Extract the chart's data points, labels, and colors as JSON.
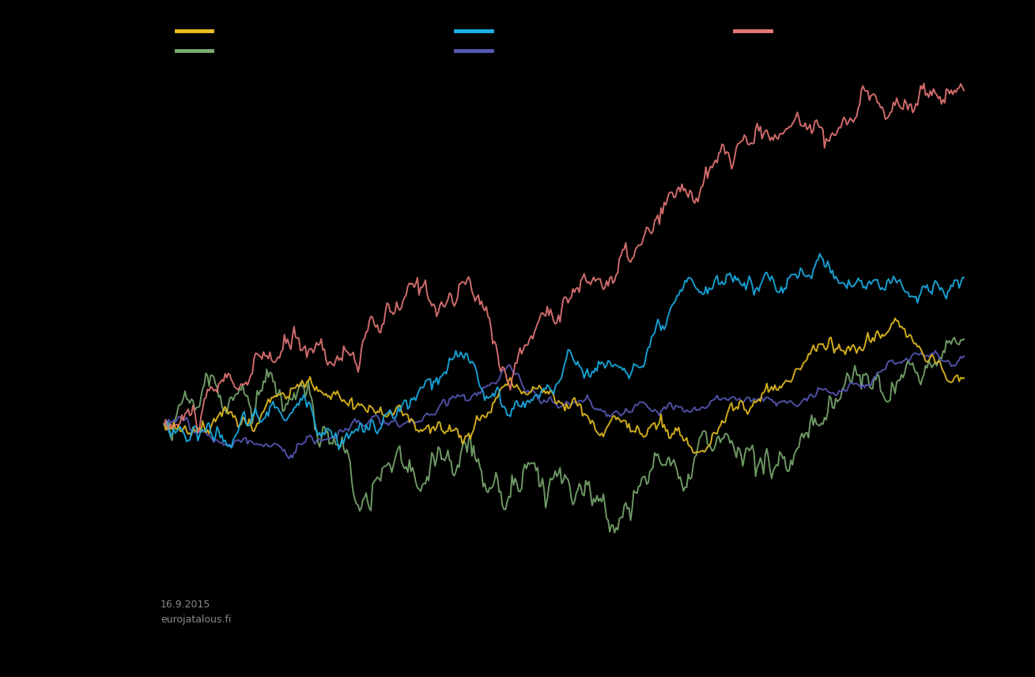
{
  "background_color": "#000000",
  "footnote": "16.9.2015\neurojatalous.fi",
  "legend_row1": [
    {
      "color": "#e8c020"
    },
    {
      "color": "#1ab0e8"
    },
    {
      "color": "#e87878"
    }
  ],
  "legend_row2": [
    {
      "color": "#7aaa70"
    },
    {
      "color": "#5858b8"
    }
  ],
  "series": [
    {
      "name": "pink",
      "color": "#e87878",
      "drift": 0.028,
      "vol": 0.55,
      "scale": 1.0
    },
    {
      "name": "blue",
      "color": "#1ab0e8",
      "drift": 0.016,
      "vol": 0.45,
      "scale": 0.6
    },
    {
      "name": "yellow",
      "color": "#e8c020",
      "drift": 0.006,
      "vol": 0.5,
      "scale": 0.32
    },
    {
      "name": "green",
      "color": "#7aaa70",
      "drift": 0.004,
      "vol": 0.42,
      "scale": 0.27
    },
    {
      "name": "purple",
      "color": "#5858b8",
      "drift": 0.005,
      "vol": 0.42,
      "scale": 0.29
    }
  ],
  "n_points": 500,
  "seed": 123
}
